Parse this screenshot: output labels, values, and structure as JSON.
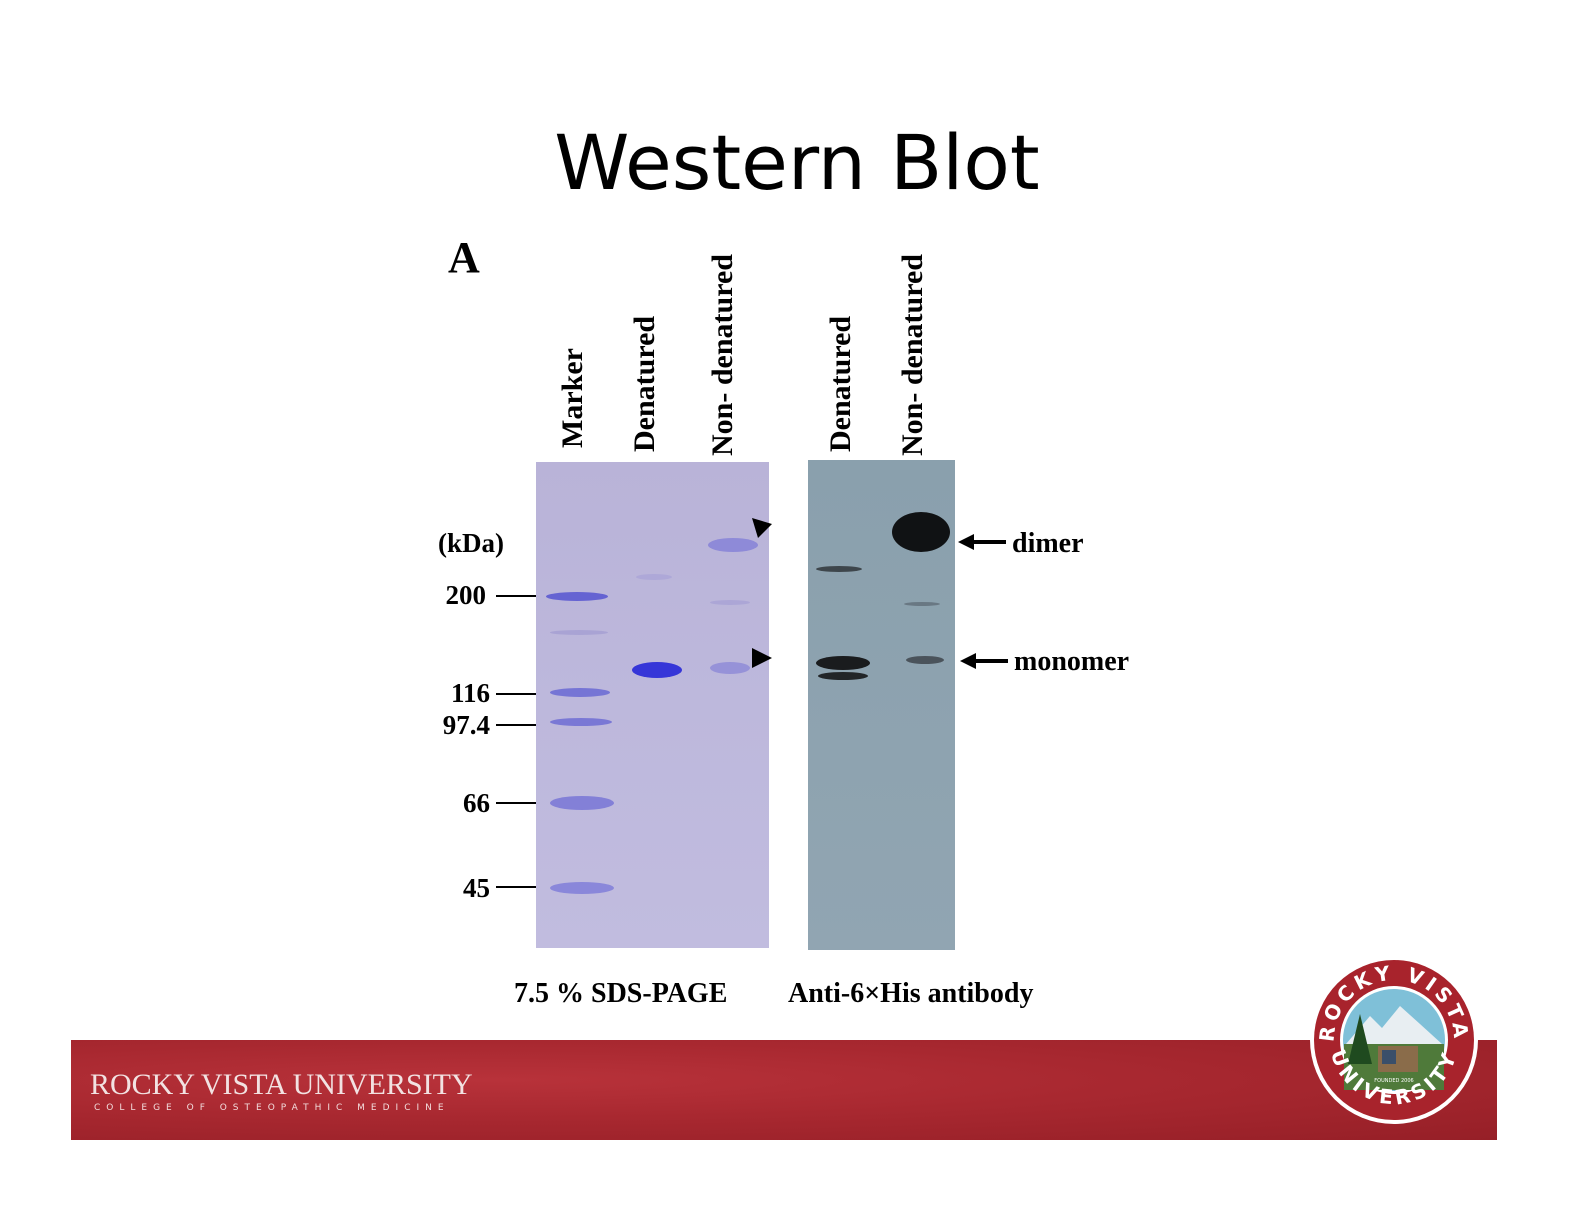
{
  "slide": {
    "title": "Western Blot"
  },
  "figure": {
    "panel_letter": "A",
    "lane_labels": [
      "Marker",
      "Denatured",
      "Non- denatured",
      "Denatured",
      "Non- denatured"
    ],
    "unit_label": "(kDa)",
    "marker_values": [
      "200",
      "116",
      "97.4",
      "66",
      "45"
    ],
    "annotations": {
      "dimer": "dimer",
      "monomer": "monomer"
    },
    "captions": {
      "gel": "7.5 % SDS-PAGE",
      "blot": "Anti-6×His antibody"
    },
    "colors": {
      "gel": "#bdb8dc",
      "blot": "#8ea3b0",
      "stained_band": "#3a3ad0",
      "blot_band": "#1a1a1a"
    }
  },
  "footer": {
    "brand_name": "ROCKY VISTA UNIVERSITY",
    "brand_subtitle": "COLLEGE OF OSTEOPATHIC MEDICINE",
    "seal_top_text": "ROCKY VISTA",
    "seal_bottom_text": "UNIVERSITY",
    "seal_founded": "FOUNDED 2006",
    "color": "#a82830"
  }
}
